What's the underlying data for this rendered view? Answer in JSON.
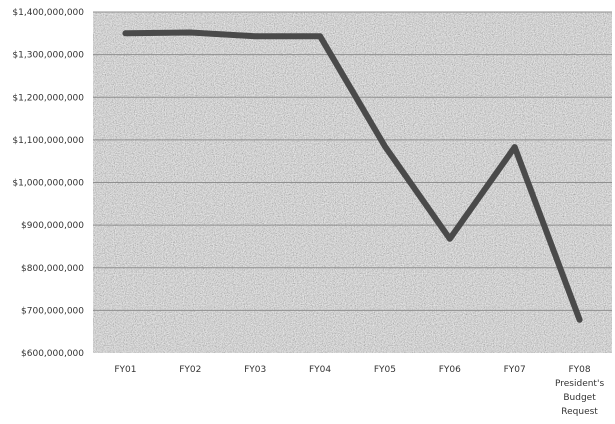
{
  "chart_data": {
    "type": "line",
    "title": "",
    "xlabel": "",
    "ylabel": "",
    "categories": [
      "FY01",
      "FY02",
      "FY03",
      "FY04",
      "FY05",
      "FY06",
      "FY07",
      "FY08 President's Budget Request"
    ],
    "category_labels": [
      [
        "FY01"
      ],
      [
        "FY02"
      ],
      [
        "FY03"
      ],
      [
        "FY04"
      ],
      [
        "FY05"
      ],
      [
        "FY06"
      ],
      [
        "FY07"
      ],
      [
        "FY08",
        "President's",
        "Budget",
        "Request"
      ]
    ],
    "values": [
      1350000000,
      1352000000,
      1343000000,
      1343000000,
      1085000000,
      868000000,
      1083000000,
      678000000
    ],
    "ylim": [
      600000000,
      1400000000
    ],
    "yticks": [
      600000000,
      700000000,
      800000000,
      900000000,
      1000000000,
      1100000000,
      1200000000,
      1300000000,
      1400000000
    ],
    "ytick_labels": [
      "$600,000,000",
      "$700,000,000",
      "$800,000,000",
      "$900,000,000",
      "$1,000,000,000",
      "$1,100,000,000",
      "$1,200,000,000",
      "$1,300,000,000",
      "$1,400,000,000"
    ],
    "grid": true,
    "legend": "none",
    "colors": {
      "line": "#4a4a4a",
      "plot_background": "#d6d6d6",
      "gridline": "#8f8f8f",
      "text": "#333333"
    }
  }
}
